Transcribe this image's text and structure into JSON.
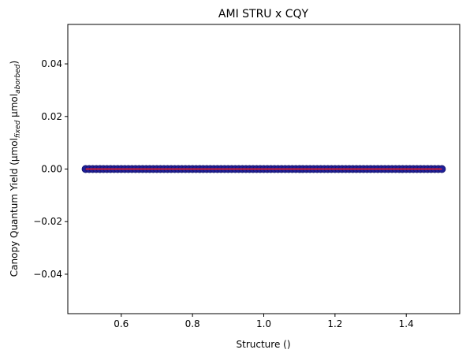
{
  "chart_data": {
    "type": "scatter",
    "title": "AMI STRU x CQY",
    "xlabel": "Structure ()",
    "ylabel": {
      "prefix": "Canopy Quantum Yield (μmol",
      "sub1": "fixed",
      "middle": " μmol",
      "sub2": "aborbed",
      "suffix": ")"
    },
    "xlim": [
      0.45,
      1.55
    ],
    "ylim": [
      -0.055,
      0.055
    ],
    "xticks": [
      0.6,
      0.8,
      1.0,
      1.2,
      1.4
    ],
    "xtick_labels": [
      "0.6",
      "0.8",
      "1.0",
      "1.2",
      "1.4"
    ],
    "yticks": [
      -0.04,
      -0.02,
      0.0,
      0.02,
      0.04
    ],
    "ytick_labels": [
      "−0.04",
      "−0.02",
      "0.00",
      "0.02",
      "0.04"
    ],
    "points": {
      "x_start": 0.5,
      "x_end": 1.5,
      "count": 101,
      "y": 0.0,
      "color": "#1f1f9a",
      "edge_color": "#16166e"
    },
    "fit_line": {
      "x": [
        0.5,
        1.5
      ],
      "y": [
        0.0,
        0.0
      ],
      "color": "#ff1a1a"
    }
  }
}
